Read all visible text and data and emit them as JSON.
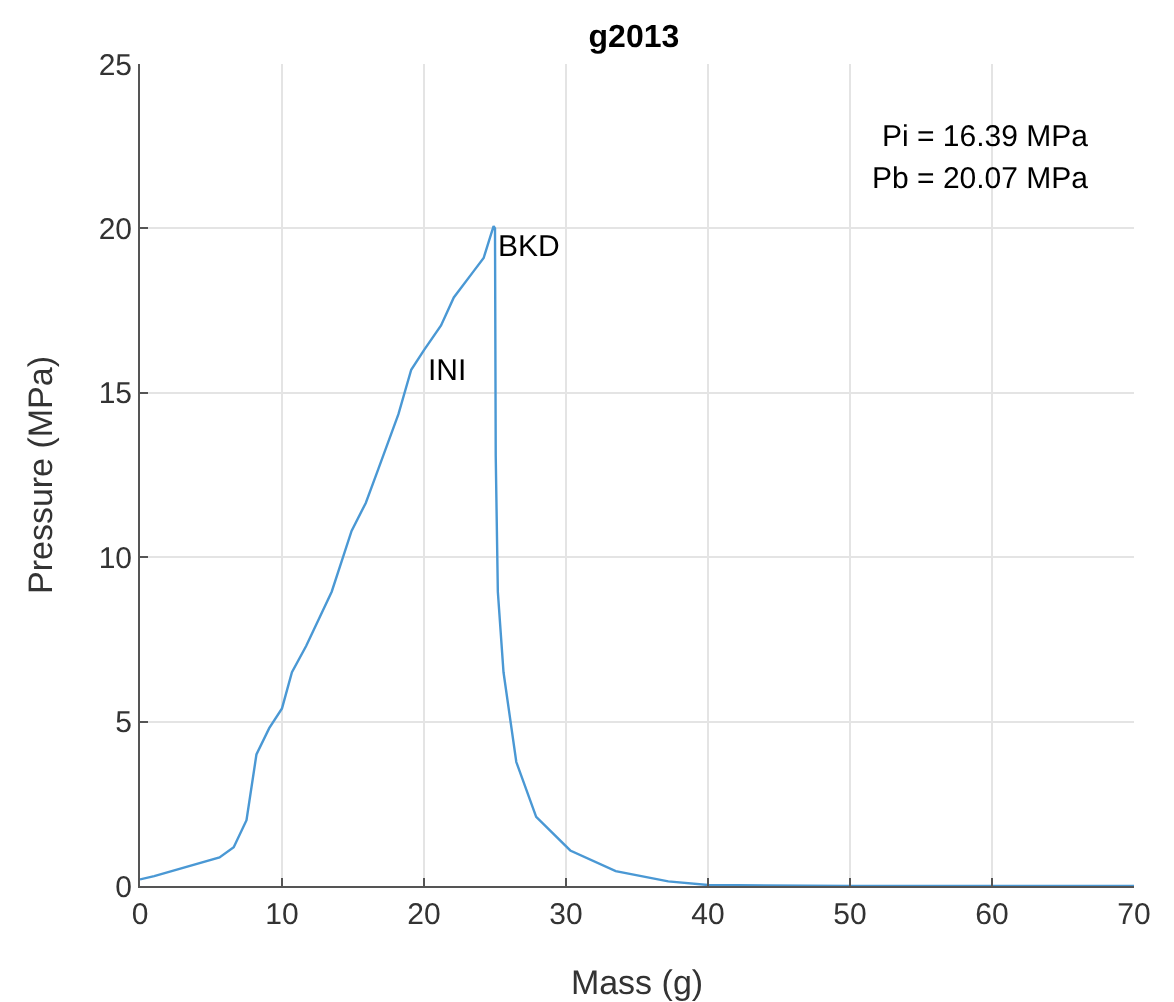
{
  "chart_data": {
    "type": "line",
    "title": "g2013",
    "xlabel": "Mass (g)",
    "ylabel": "Pressure (MPa)",
    "x": [
      0,
      1,
      5.6,
      6.6,
      7.5,
      8.2,
      9.1,
      10,
      10.7,
      11.7,
      13.5,
      14.9,
      15.9,
      16.8,
      18.2,
      19.1,
      20,
      21.2,
      22.1,
      23.5,
      24.2,
      24.9,
      25,
      25.05,
      25.2,
      25.6,
      26.5,
      27.9,
      30.3,
      33.5,
      37.2,
      40,
      50,
      60,
      70
    ],
    "series": [
      {
        "color": "#4a98d4",
        "values": [
          0.2,
          0.3,
          0.87,
          1.18,
          2,
          4,
          4.8,
          5.4,
          6.5,
          7.3,
          8.95,
          10.8,
          11.65,
          12.7,
          14.35,
          15.7,
          16.3,
          17.05,
          17.9,
          18.7,
          19.1,
          20.07,
          20,
          13.1,
          8.95,
          6.5,
          3.77,
          2.1,
          1.08,
          0.45,
          0.14,
          0.03,
          0,
          0,
          0
        ]
      }
    ],
    "xlim": [
      0,
      70
    ],
    "ylim": [
      0,
      25
    ],
    "xticks": [
      0,
      10,
      20,
      30,
      40,
      50,
      60,
      70
    ],
    "yticks": [
      0,
      5,
      10,
      15,
      20,
      25
    ],
    "grid": true,
    "line_style": "solid",
    "annotations": [
      {
        "text": "INI",
        "x": 20,
        "y": 16.3
      },
      {
        "text": "BKD",
        "x": 24.9,
        "y": 20.07
      },
      "Pi = 16.39 MPa",
      "Pb = 20.07 MPa"
    ]
  }
}
